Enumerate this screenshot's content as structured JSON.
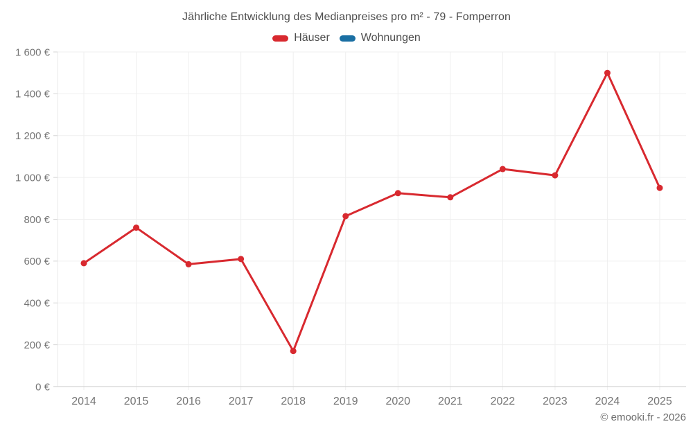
{
  "header": {
    "title": "Jährliche Entwicklung des Medianpreises pro m² - 79 - Fomperron"
  },
  "footer": {
    "credit": "© emooki.fr - 2026"
  },
  "chart_data": {
    "type": "line",
    "title": "Jährliche Entwicklung des Medianpreises pro m² - 79 - Fomperron",
    "categories": [
      "2014",
      "2015",
      "2016",
      "2017",
      "2018",
      "2019",
      "2020",
      "2021",
      "2022",
      "2023",
      "2024",
      "2025"
    ],
    "series": [
      {
        "name": "Häuser",
        "color": "#d8292f",
        "values": [
          590,
          760,
          585,
          610,
          170,
          815,
          925,
          905,
          1040,
          1010,
          1500,
          950
        ]
      },
      {
        "name": "Wohnungen",
        "color": "#1a6fa3",
        "values": []
      }
    ],
    "xlabel": "",
    "ylabel": "",
    "ylim": [
      0,
      1600
    ],
    "ytick_step": 200,
    "ytick_suffix": " €",
    "grid": true,
    "legend_position": "top",
    "point_radius": 4.5,
    "line_width": 3
  },
  "style_colors": {
    "grid_line": "#efefef",
    "axis_line": "#e9e9e9",
    "baseline": "#d4d4d4",
    "tick": "#d4d4d4",
    "axis_text": "#757575"
  }
}
